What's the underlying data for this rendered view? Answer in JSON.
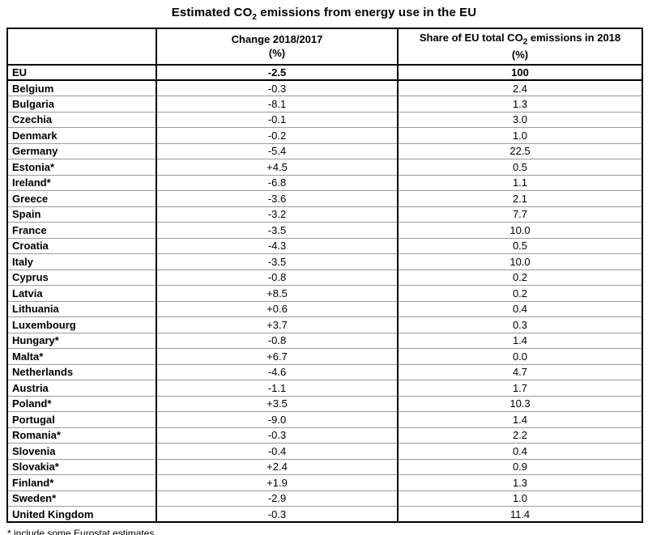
{
  "display": {
    "title": {
      "prefix": "Estimated CO",
      "sub": "2",
      "suffix": " emissions from energy use in the EU"
    },
    "header": {
      "country_col": "",
      "change_line1": "Change 2018/2017",
      "change_line2": "(%)",
      "share_prefix": "Share of EU total CO",
      "share_sub": "2",
      "share_suffix": " emissions in 2018",
      "share_line2": "(%)"
    },
    "footnote": "* include some Eurostat estimates"
  },
  "colors": {
    "background": "#ffffff",
    "text": "#000000",
    "border_strong": "#000000",
    "row_line": "#9b9b9b"
  },
  "chart_data": {
    "type": "table",
    "title": "Estimated CO2 emissions from energy use in the EU",
    "columns": [
      "",
      "Change 2018/2017 (%)",
      "Share of EU total CO2 emissions in 2018 (%)"
    ],
    "footnote": "* include some Eurostat estimates",
    "rows": [
      {
        "name": "EU",
        "change": "-2.5",
        "share": "100",
        "bold": true
      },
      {
        "name": "Belgium",
        "change": "-0.3",
        "share": "2.4"
      },
      {
        "name": "Bulgaria",
        "change": "-8.1",
        "share": "1.3"
      },
      {
        "name": "Czechia",
        "change": "-0.1",
        "share": "3.0"
      },
      {
        "name": "Denmark",
        "change": "-0.2",
        "share": "1.0"
      },
      {
        "name": "Germany",
        "change": "-5.4",
        "share": "22.5"
      },
      {
        "name": "Estonia*",
        "change": "+4.5",
        "share": "0.5"
      },
      {
        "name": "Ireland*",
        "change": "-6.8",
        "share": "1.1"
      },
      {
        "name": "Greece",
        "change": "-3.6",
        "share": "2.1"
      },
      {
        "name": "Spain",
        "change": "-3.2",
        "share": "7.7"
      },
      {
        "name": "France",
        "change": "-3.5",
        "share": "10.0"
      },
      {
        "name": "Croatia",
        "change": "-4.3",
        "share": "0.5"
      },
      {
        "name": "Italy",
        "change": "-3.5",
        "share": "10.0"
      },
      {
        "name": "Cyprus",
        "change": "-0.8",
        "share": "0.2"
      },
      {
        "name": "Latvia",
        "change": "+8.5",
        "share": "0.2"
      },
      {
        "name": "Lithuania",
        "change": "+0.6",
        "share": "0.4"
      },
      {
        "name": "Luxembourg",
        "change": "+3.7",
        "share": "0.3"
      },
      {
        "name": "Hungary*",
        "change": "-0.8",
        "share": "1.4"
      },
      {
        "name": "Malta*",
        "change": "+6.7",
        "share": "0.0"
      },
      {
        "name": "Netherlands",
        "change": "-4.6",
        "share": "4.7"
      },
      {
        "name": "Austria",
        "change": "-1.1",
        "share": "1.7"
      },
      {
        "name": "Poland*",
        "change": "+3.5",
        "share": "10.3"
      },
      {
        "name": "Portugal",
        "change": "-9.0",
        "share": "1.4"
      },
      {
        "name": "Romania*",
        "change": "-0.3",
        "share": "2.2"
      },
      {
        "name": "Slovenia",
        "change": "-0.4",
        "share": "0.4"
      },
      {
        "name": "Slovakia*",
        "change": "+2.4",
        "share": "0.9"
      },
      {
        "name": "Finland*",
        "change": "+1.9",
        "share": "1.3"
      },
      {
        "name": "Sweden*",
        "change": "-2.9",
        "share": "1.0"
      },
      {
        "name": "United Kingdom",
        "change": "-0.3",
        "share": "11.4"
      }
    ]
  }
}
